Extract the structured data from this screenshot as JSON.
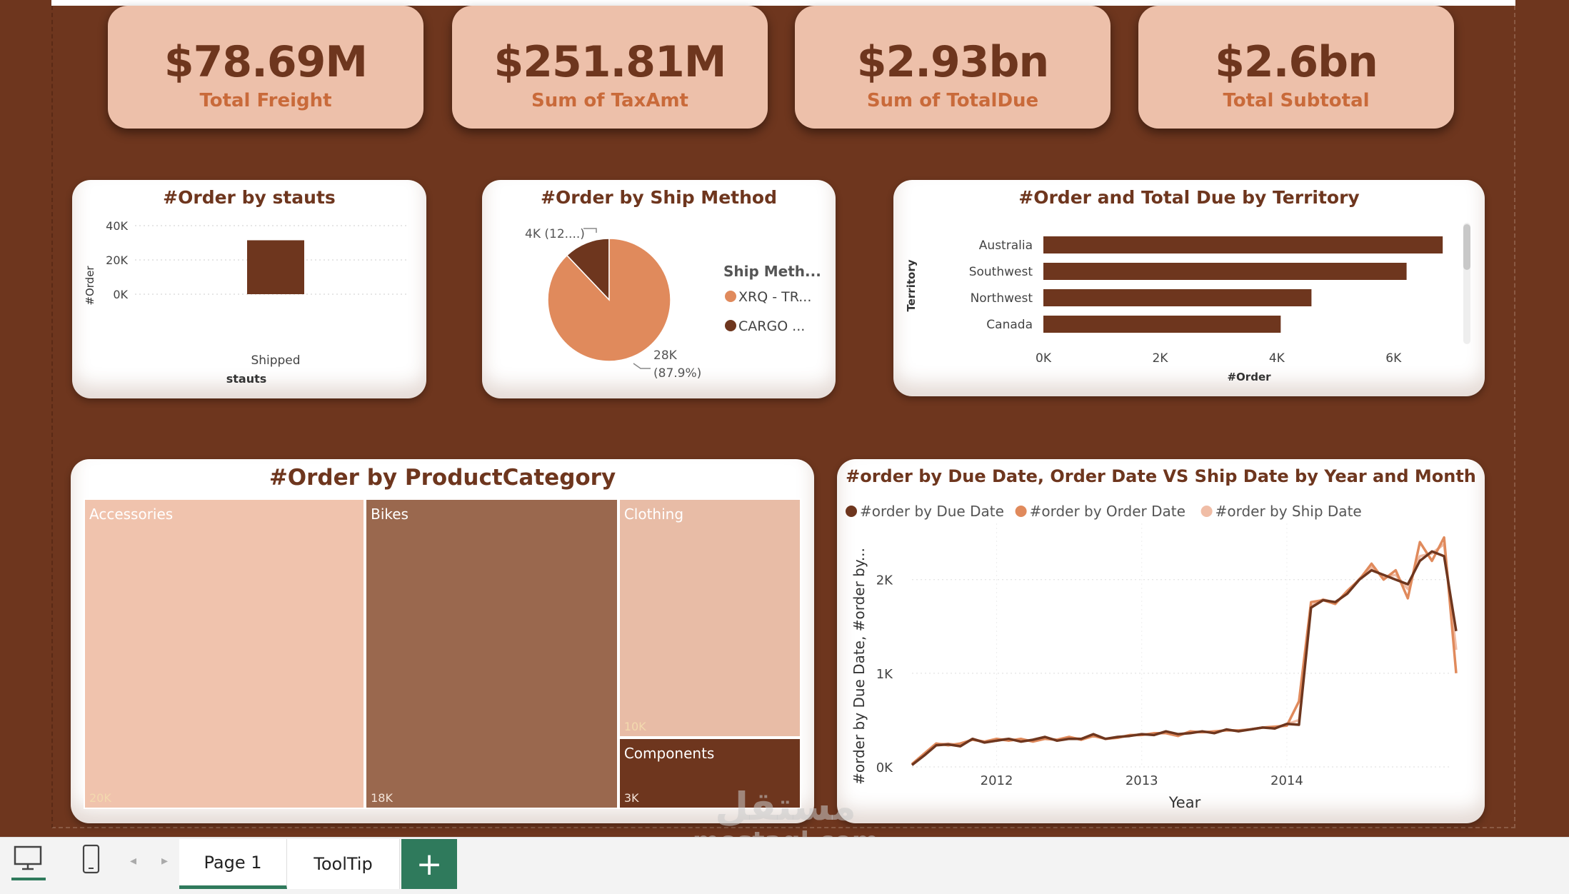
{
  "kpis": [
    {
      "value": "$78.69M",
      "label": "Total Freight"
    },
    {
      "value": "$251.81M",
      "label": "Sum of TaxAmt"
    },
    {
      "value": "$2.93bn",
      "label": "Sum of TotalDue"
    },
    {
      "value": "$2.6bn",
      "label": "Total Subtotal"
    }
  ],
  "colors": {
    "dark": "#6e361e",
    "orange": "#e08a5c",
    "peach": "#edc0aa",
    "bikes": "#9a684e",
    "light": "#f0c3ad"
  },
  "status_chart": {
    "title": "#Order by stauts",
    "type": "bar",
    "categories": [
      "Shipped"
    ],
    "values": [
      31465
    ],
    "xlabel": "stauts",
    "ylabel": "#Order",
    "ticks": [
      "0K",
      "20K",
      "40K"
    ],
    "ylim": [
      0,
      40000
    ]
  },
  "ship_chart": {
    "title": "#Order by Ship Method",
    "type": "pie",
    "legend_title": "Ship Meth...",
    "slices": [
      {
        "label": "XRQ - TR...",
        "value": 27659,
        "data_label": "28K",
        "data_pct": "(87.9%)",
        "color": "#e08a5c"
      },
      {
        "label": "CARGO ...",
        "value": 3806,
        "data_label": "4K (12....)",
        "color": "#6e361e"
      }
    ]
  },
  "territory_chart": {
    "title": "#Order and Total Due by Territory",
    "type": "bar",
    "categories": [
      "Australia",
      "Southwest",
      "Northwest",
      "Canada"
    ],
    "values": [
      6843,
      6224,
      4594,
      4067
    ],
    "xlabel": "#Order",
    "ylabel": "Territory",
    "ticks": [
      "0K",
      "2K",
      "4K",
      "6K"
    ],
    "xlim": [
      0,
      7000
    ]
  },
  "category_chart": {
    "title": "#Order by ProductCategory",
    "type": "treemap",
    "items": [
      {
        "name": "Accessories",
        "value": 20000,
        "value_label": "20K"
      },
      {
        "name": "Bikes",
        "value": 18000,
        "value_label": "18K"
      },
      {
        "name": "Clothing",
        "value": 10000,
        "value_label": "10K"
      },
      {
        "name": "Components",
        "value": 3000,
        "value_label": "3K"
      }
    ]
  },
  "line_chart": {
    "title": "#order by Due Date, Order Date VS Ship Date by Year and Month",
    "type": "line",
    "xlabel": "Year",
    "ylabel": "#order by Due Date, #order by...",
    "x_ticks": [
      "2012",
      "2013",
      "2014"
    ],
    "y_ticks": [
      "0K",
      "1K",
      "2K"
    ],
    "ylim": [
      0,
      2600
    ],
    "series": [
      {
        "name": "#order by Due Date",
        "color": "#6e361e",
        "values": [
          20,
          120,
          230,
          240,
          220,
          300,
          260,
          280,
          300,
          270,
          290,
          320,
          280,
          300,
          300,
          350,
          300,
          320,
          330,
          350,
          340,
          380,
          350,
          360,
          380,
          360,
          400,
          380,
          400,
          420,
          410,
          460,
          450,
          1700,
          1780,
          1760,
          1850,
          2000,
          2100,
          2050,
          2000,
          1950,
          2200,
          2300,
          2250,
          1450
        ]
      },
      {
        "name": "#order by Order Date",
        "color": "#e08a5c",
        "values": [
          30,
          140,
          250,
          230,
          250,
          290,
          270,
          300,
          280,
          300,
          270,
          300,
          290,
          320,
          290,
          330,
          300,
          310,
          340,
          340,
          360,
          360,
          330,
          380,
          370,
          380,
          390,
          390,
          400,
          420,
          430,
          440,
          700,
          1760,
          1780,
          1740,
          1880,
          2000,
          2170,
          2000,
          2100,
          1800,
          2400,
          2200,
          2450,
          1000
        ]
      },
      {
        "name": "#order by Ship Date",
        "color": "#f0bda6",
        "values": [
          25,
          130,
          240,
          250,
          230,
          300,
          265,
          290,
          300,
          280,
          280,
          310,
          285,
          310,
          300,
          345,
          300,
          315,
          335,
          345,
          345,
          370,
          345,
          370,
          375,
          370,
          395,
          385,
          400,
          420,
          420,
          455,
          500,
          1720,
          1790,
          1750,
          1860,
          2010,
          2130,
          2030,
          2050,
          1900,
          2250,
          2280,
          2380,
          1250
        ]
      }
    ]
  },
  "tabs": {
    "page1": "Page 1",
    "tooltip": "ToolTip",
    "add": "+"
  },
  "watermark": {
    "arabic": "مستقل",
    "domain": "mostaql.com"
  }
}
